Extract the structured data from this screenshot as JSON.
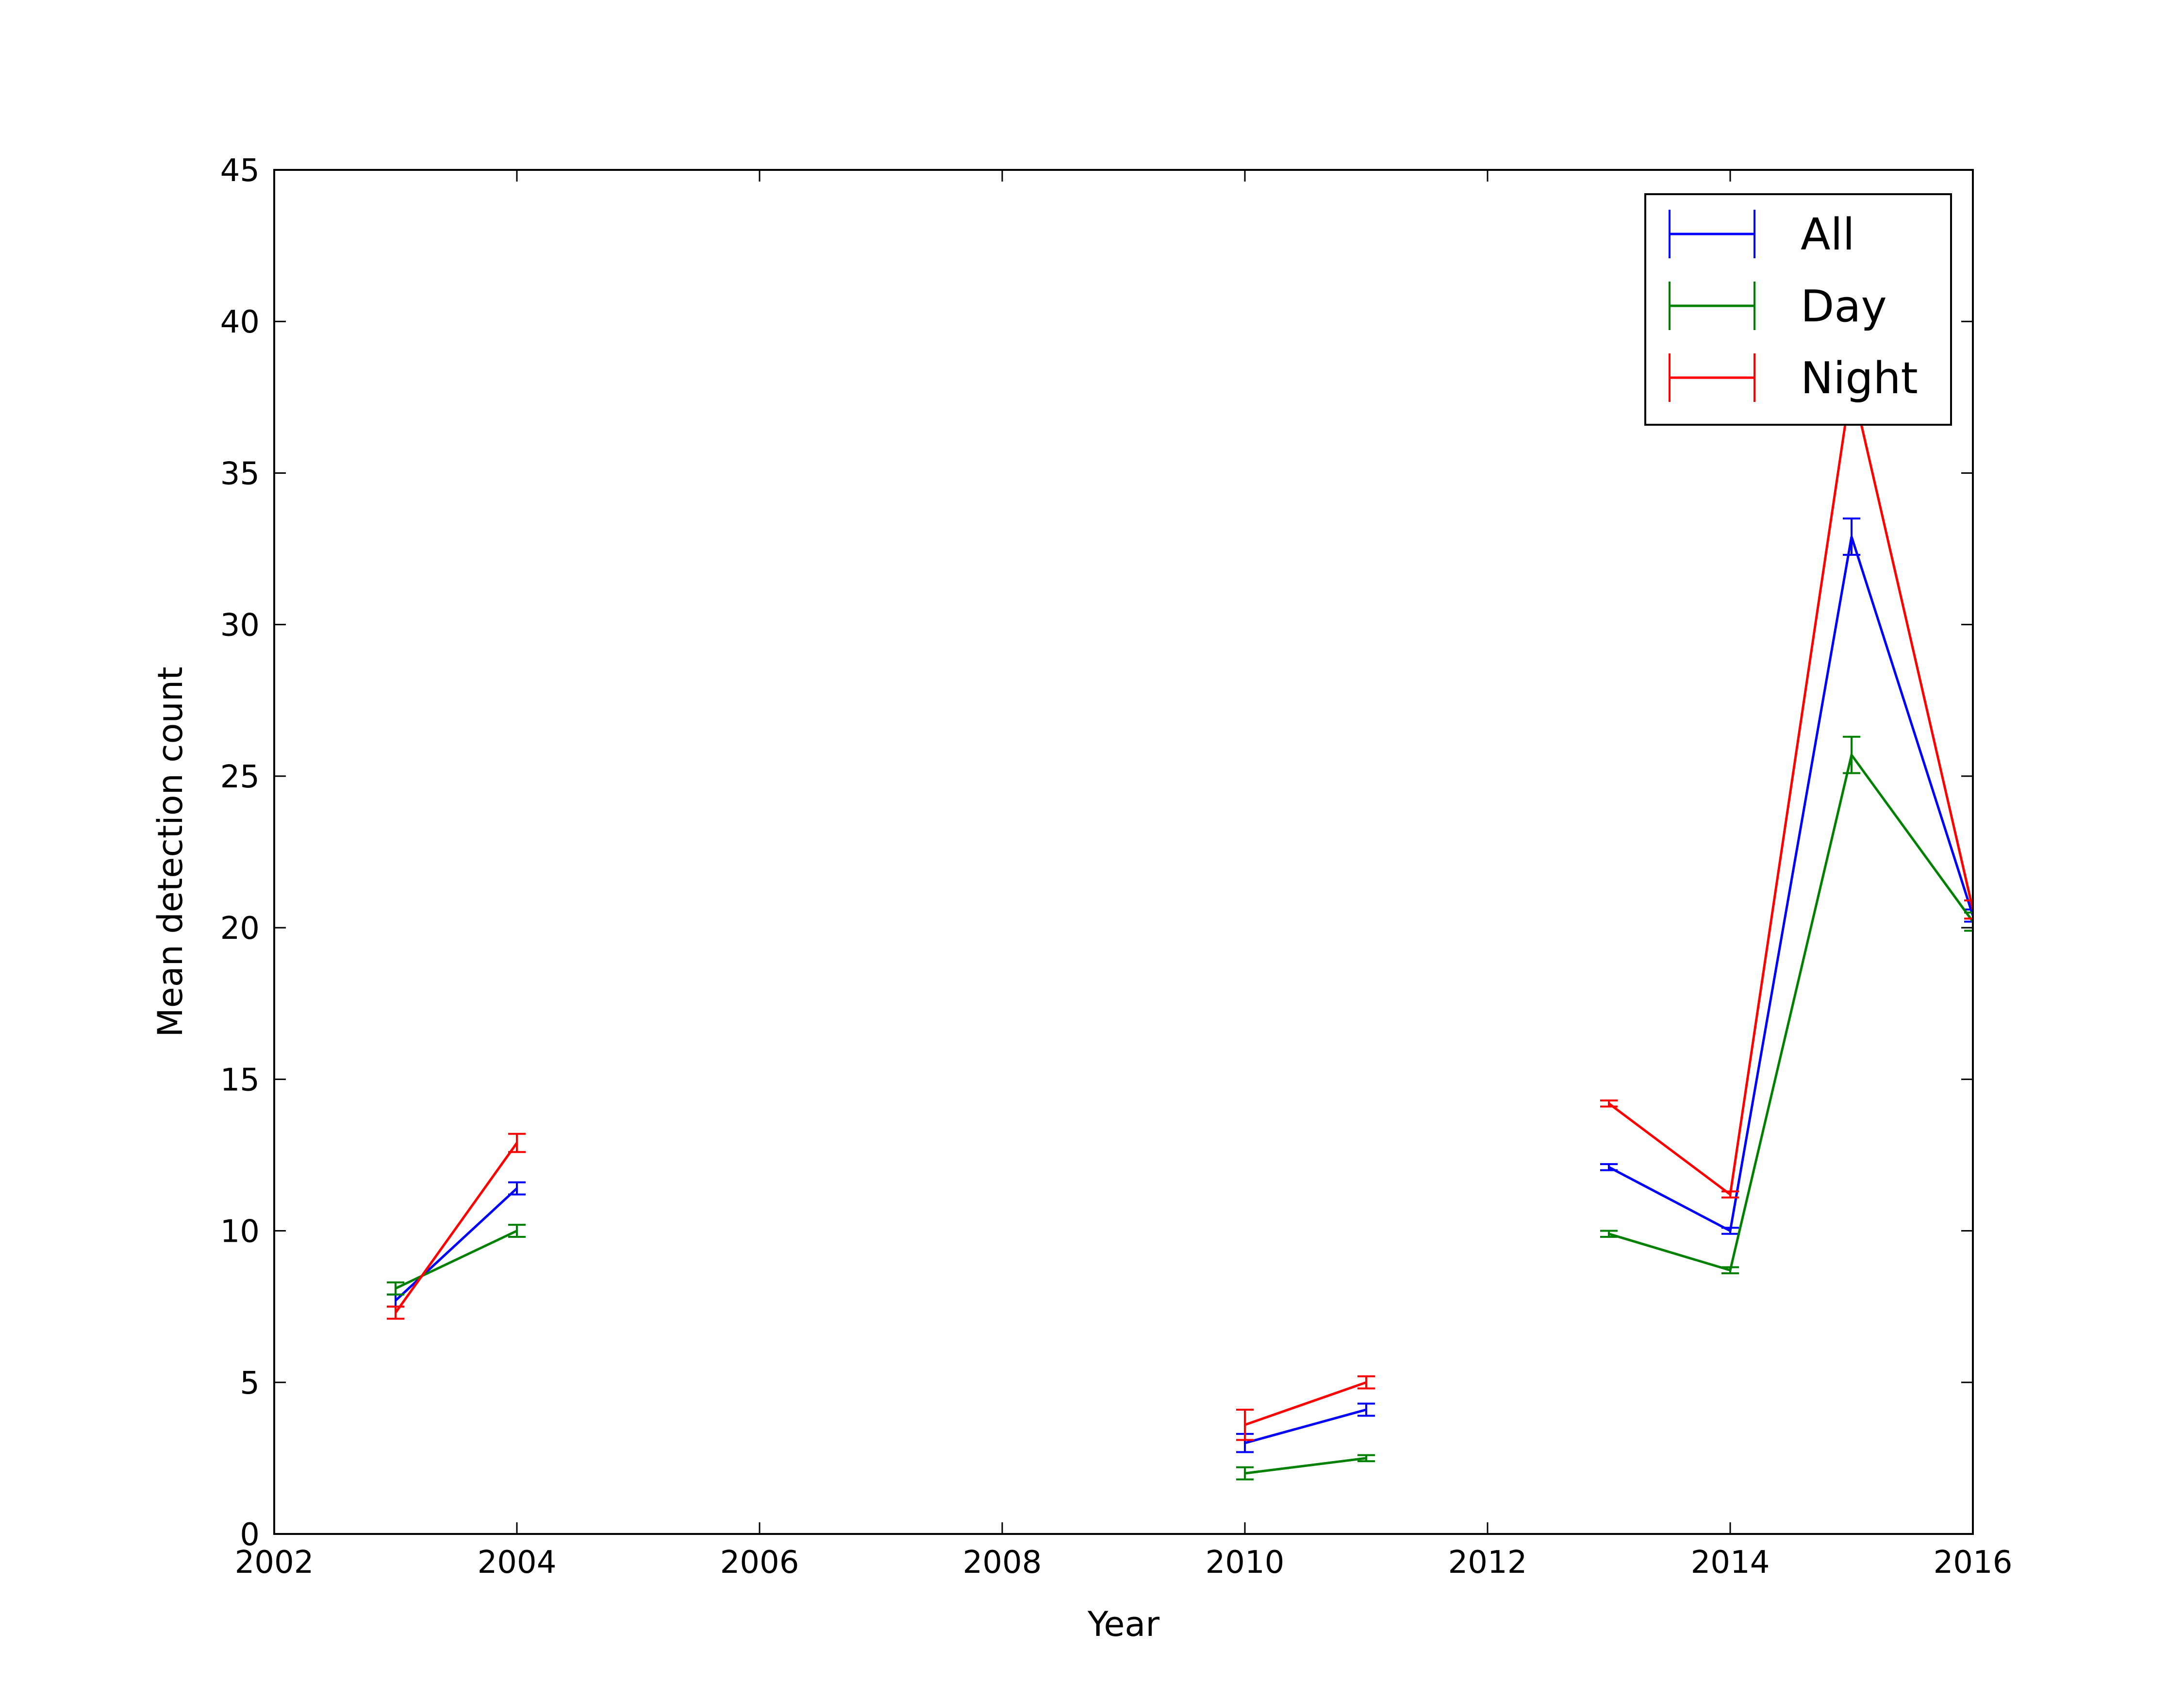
{
  "chart_data": {
    "type": "line",
    "title": "",
    "xlabel": "Year",
    "ylabel": "Mean detection count",
    "xlim": [
      2002,
      2016
    ],
    "ylim": [
      0,
      45
    ],
    "xticks": [
      2002,
      2004,
      2006,
      2008,
      2010,
      2012,
      2014,
      2016
    ],
    "yticks": [
      0,
      5,
      10,
      15,
      20,
      25,
      30,
      35,
      40,
      45
    ],
    "grid": false,
    "legend_position": "top-right",
    "error_bars": true,
    "series": [
      {
        "name": "All",
        "color": "#0000ff",
        "segments": [
          {
            "x": [
              2003,
              2004
            ],
            "y": [
              7.7,
              11.4
            ],
            "err": [
              0.2,
              0.2
            ]
          },
          {
            "x": [
              2010,
              2011
            ],
            "y": [
              3.0,
              4.1
            ],
            "err": [
              0.3,
              0.2
            ]
          },
          {
            "x": [
              2013,
              2014,
              2015,
              2016
            ],
            "y": [
              12.1,
              10.0,
              32.9,
              20.4
            ],
            "err": [
              0.1,
              0.1,
              0.6,
              0.2
            ]
          }
        ]
      },
      {
        "name": "Day",
        "color": "#008000",
        "segments": [
          {
            "x": [
              2003,
              2004
            ],
            "y": [
              8.1,
              10.0
            ],
            "err": [
              0.2,
              0.2
            ]
          },
          {
            "x": [
              2010,
              2011
            ],
            "y": [
              2.0,
              2.5
            ],
            "err": [
              0.2,
              0.1
            ]
          },
          {
            "x": [
              2013,
              2014,
              2015,
              2016
            ],
            "y": [
              9.9,
              8.7,
              25.7,
              20.2
            ],
            "err": [
              0.1,
              0.1,
              0.6,
              0.3
            ]
          }
        ]
      },
      {
        "name": "Night",
        "color": "#ff0000",
        "segments": [
          {
            "x": [
              2003,
              2004
            ],
            "y": [
              7.3,
              12.9
            ],
            "err": [
              0.2,
              0.3
            ]
          },
          {
            "x": [
              2010,
              2011
            ],
            "y": [
              3.6,
              5.0
            ],
            "err": [
              0.5,
              0.2
            ]
          },
          {
            "x": [
              2013,
              2014,
              2015,
              2016
            ],
            "y": [
              14.2,
              11.2,
              38.0,
              20.6
            ],
            "err": [
              0.1,
              0.1,
              0.6,
              0.3
            ]
          }
        ]
      }
    ]
  }
}
